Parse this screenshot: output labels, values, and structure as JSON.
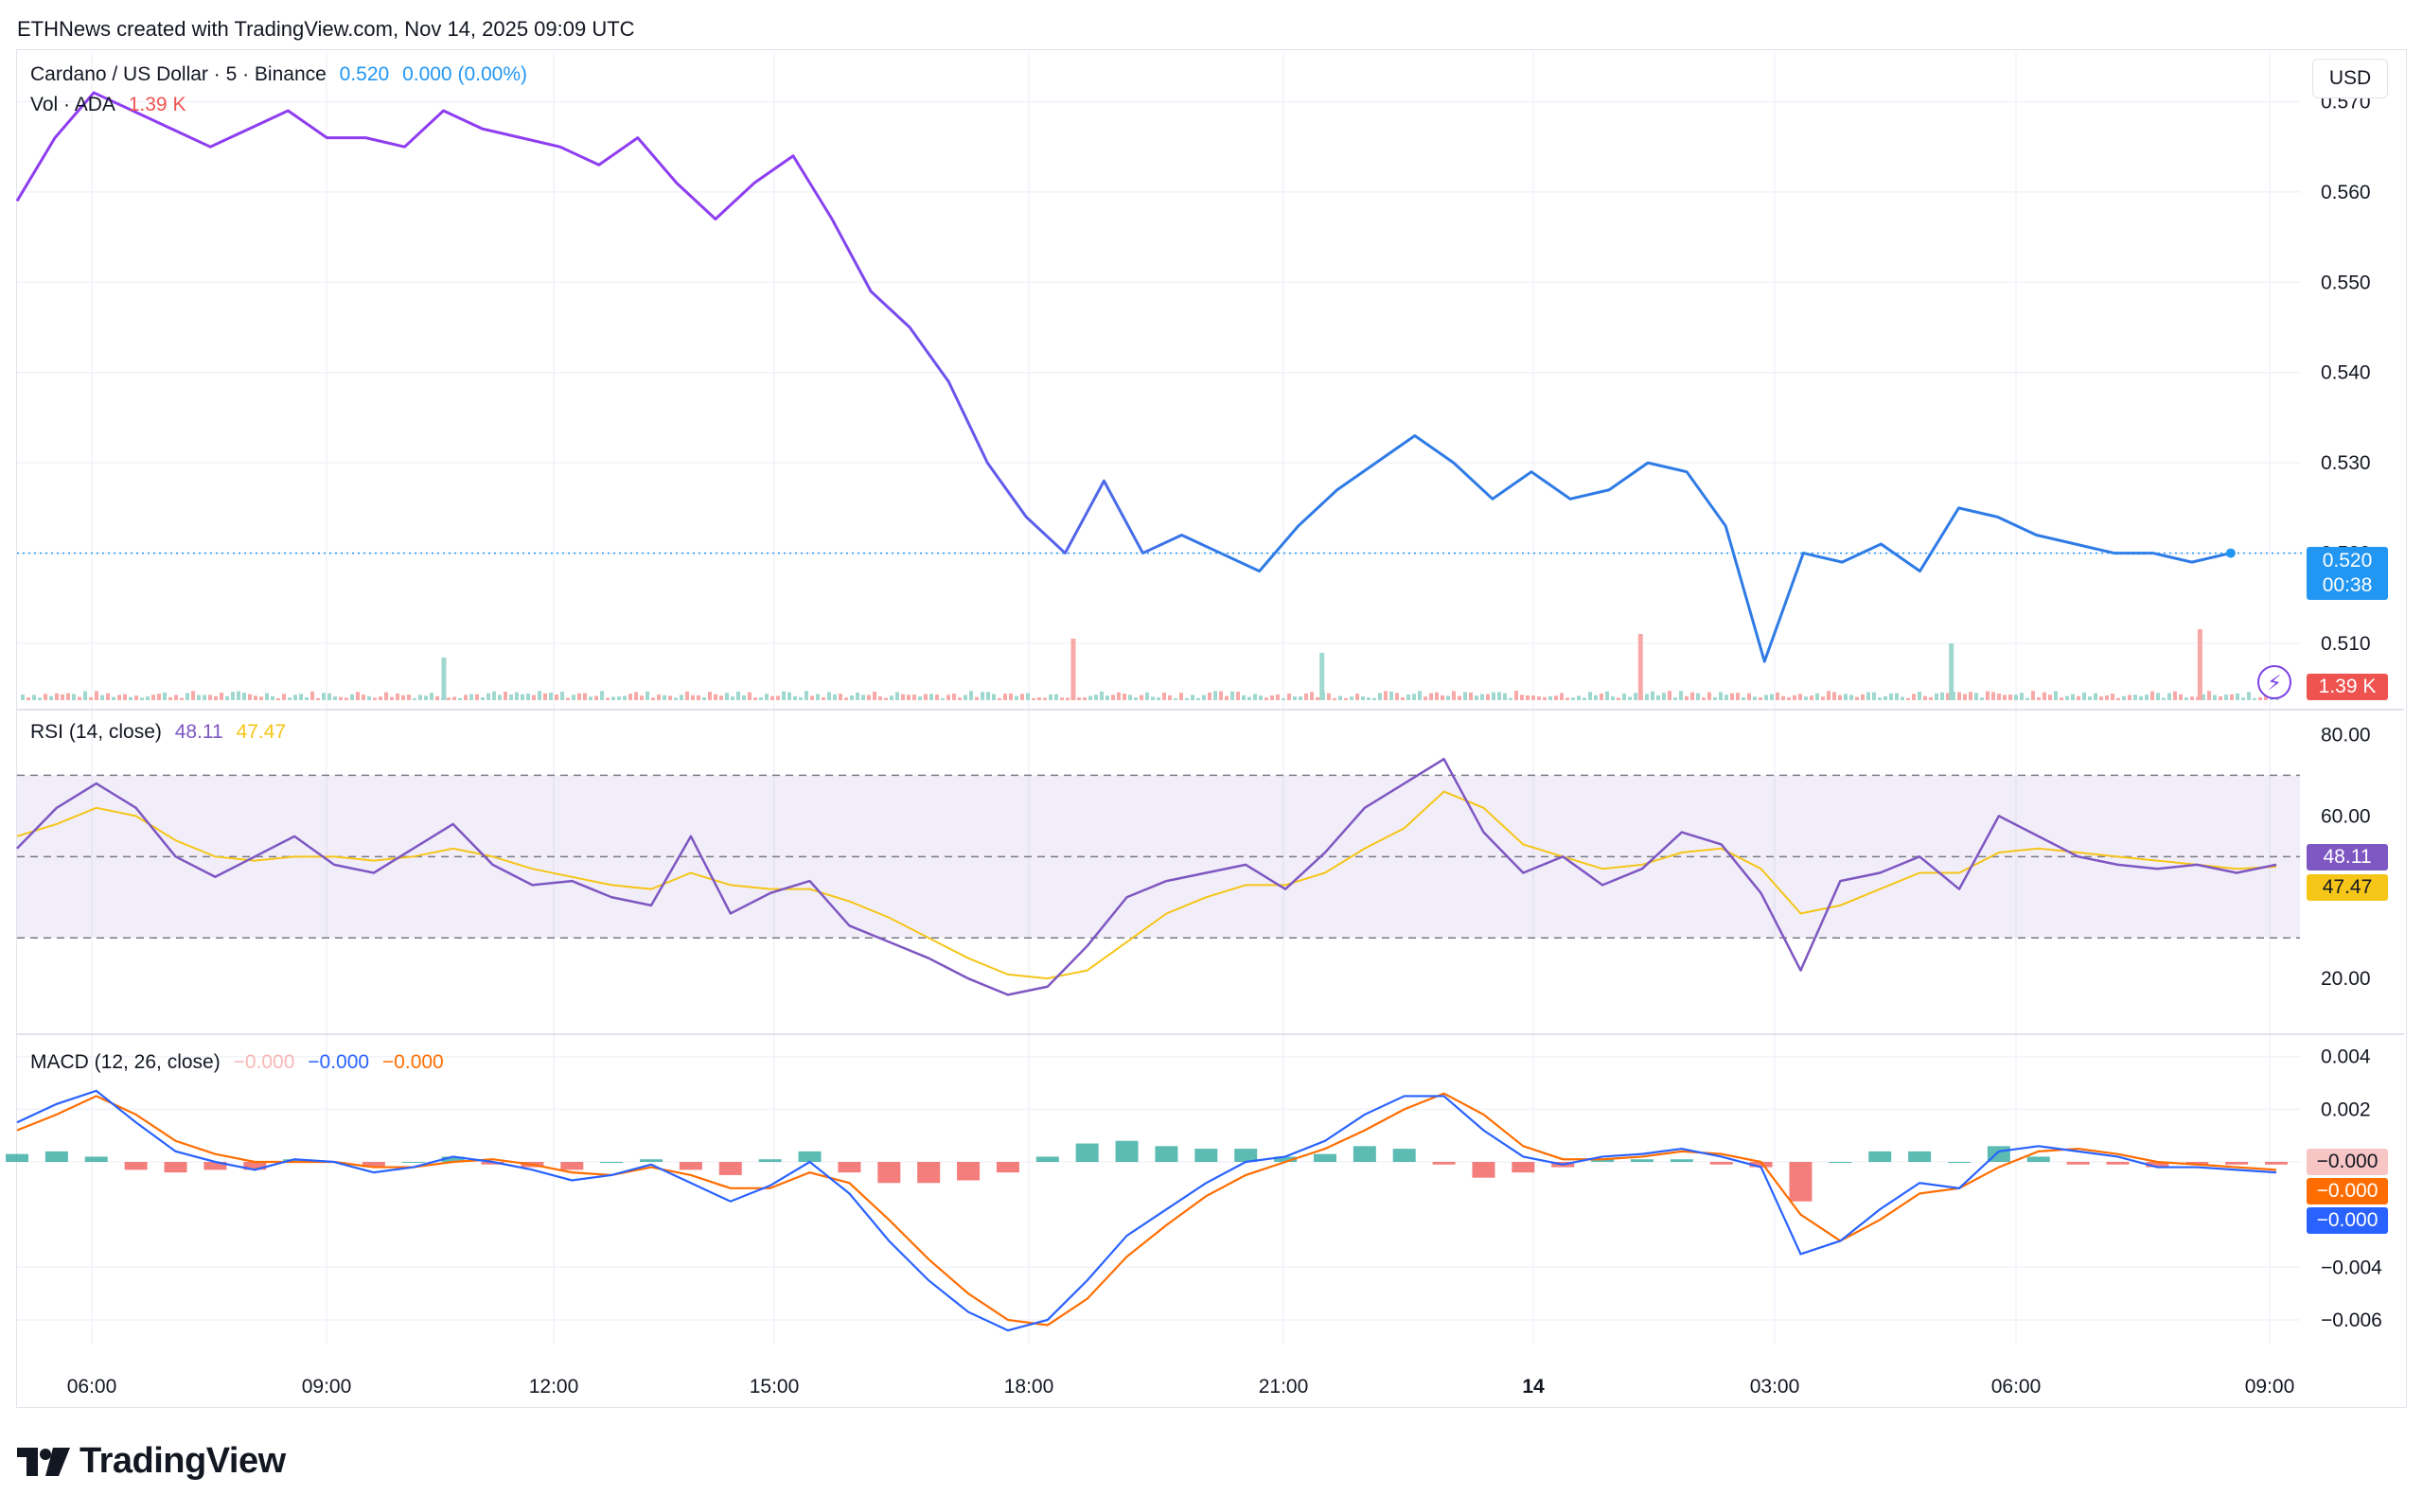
{
  "header": {
    "credit": "ETHNews created with TradingView.com, Nov 14, 2025 09:09 UTC"
  },
  "legend": {
    "symbol": "Cardano / US Dollar · 5 · Binance",
    "price": "0.520",
    "change": "0.000 (0.00%)",
    "vol_label": "Vol · ADA",
    "vol_value": "1.39 K",
    "rsi_label": "RSI (14, close)",
    "rsi_value": "48.11",
    "rsi_ma_value": "47.47",
    "macd_label": "MACD (12, 26, close)",
    "macd_hist": "−0.000",
    "macd_line": "−0.000",
    "macd_signal": "−0.000"
  },
  "toolbar": {
    "currency_button": "USD"
  },
  "badges": {
    "price": "0.520",
    "countdown": "00:38",
    "volume": "1.39 K",
    "rsi": "48.11",
    "rsi_ma": "47.47",
    "macd_hist": "−0.000",
    "macd_signal": "−0.000",
    "macd_line": "−0.000"
  },
  "colors": {
    "price_start": "#8e3df0",
    "price_end": "#2f7be6",
    "up": "#26a69a",
    "down": "#ef5350",
    "rsi": "#7e57c2",
    "rsi_ma": "#f5c518",
    "macd": "#2962ff",
    "signal": "#ff6d00",
    "price_badge": "#2196f3",
    "vol_badge": "#ef5350"
  },
  "branding": {
    "logo_text": "TradingView"
  },
  "chart_data": [
    {
      "type": "line",
      "title": "Cardano / US Dollar · 5 · Binance",
      "x_ticks": [
        "06:00",
        "09:00",
        "12:00",
        "15:00",
        "18:00",
        "21:00",
        "14",
        "03:00",
        "06:00",
        "09:00"
      ],
      "y_ticks": [
        "0.570",
        "0.560",
        "0.550",
        "0.540",
        "0.530",
        "0.520",
        "0.510"
      ],
      "ylim": [
        0.5035,
        0.5755
      ],
      "x_hours": [
        0,
        0.5,
        1,
        1.5,
        2,
        2.5,
        3,
        3.5,
        4,
        4.5,
        5,
        5.5,
        6,
        6.5,
        7,
        7.5,
        8,
        8.5,
        9,
        9.5,
        10,
        10.5,
        11,
        11.5,
        12,
        12.5,
        13,
        13.5,
        14,
        14.5,
        15,
        15.5,
        16,
        16.5,
        17,
        17.5,
        18,
        18.5,
        19,
        19.5,
        20,
        20.5,
        21,
        21.5,
        22,
        22.5,
        23,
        23.5,
        24,
        24.5,
        25,
        25.5,
        26,
        26.5,
        27,
        27.5,
        28,
        28.5
      ],
      "close": [
        0.559,
        0.566,
        0.571,
        0.569,
        0.567,
        0.565,
        0.567,
        0.569,
        0.566,
        0.566,
        0.565,
        0.569,
        0.567,
        0.566,
        0.565,
        0.563,
        0.566,
        0.561,
        0.557,
        0.561,
        0.564,
        0.557,
        0.549,
        0.545,
        0.539,
        0.53,
        0.524,
        0.52,
        0.528,
        0.52,
        0.522,
        0.52,
        0.518,
        0.523,
        0.527,
        0.53,
        0.533,
        0.53,
        0.526,
        0.529,
        0.526,
        0.527,
        0.53,
        0.529,
        0.523,
        0.508,
        0.52,
        0.519,
        0.521,
        0.518,
        0.525,
        0.524,
        0.522,
        0.521,
        0.52,
        0.52,
        0.519,
        0.52
      ],
      "last_price": 0.52,
      "volume": {
        "legend": "Vol · ADA",
        "last": "1.39 K",
        "spikes": [
          {
            "x_hour": 4.5,
            "v": 18
          },
          {
            "x_hour": 12.6,
            "v": 26
          },
          {
            "x_hour": 15.8,
            "v": 20
          },
          {
            "x_hour": 19.9,
            "v": 28
          },
          {
            "x_hour": 23.9,
            "v": 24
          },
          {
            "x_hour": 27.1,
            "v": 30
          }
        ]
      }
    },
    {
      "type": "line",
      "title": "RSI (14, close)",
      "y_ticks": [
        "80.00",
        "60.00",
        "20.00"
      ],
      "ylim": [
        7,
        85
      ],
      "bands": [
        30,
        50,
        70
      ],
      "rsi": [
        52,
        62,
        68,
        62,
        50,
        45,
        50,
        55,
        48,
        46,
        52,
        58,
        48,
        43,
        44,
        40,
        38,
        55,
        36,
        41,
        44,
        33,
        29,
        25,
        20,
        16,
        18,
        28,
        40,
        44,
        46,
        48,
        42,
        51,
        62,
        68,
        74,
        56,
        46,
        50,
        43,
        47,
        56,
        53,
        41,
        22,
        44,
        46,
        50,
        42,
        60,
        55,
        50,
        48,
        47,
        48,
        46,
        48
      ],
      "rsi_ma": [
        55,
        58,
        62,
        60,
        54,
        50,
        49,
        50,
        50,
        49,
        50,
        52,
        50,
        47,
        45,
        43,
        42,
        46,
        43,
        42,
        42,
        39,
        35,
        30,
        25,
        21,
        20,
        22,
        29,
        36,
        40,
        43,
        43,
        46,
        52,
        57,
        66,
        62,
        53,
        50,
        47,
        48,
        51,
        52,
        47,
        36,
        38,
        42,
        46,
        46,
        51,
        52,
        51,
        50,
        49,
        48,
        47,
        47.5
      ],
      "values": [
        "48.11",
        "47.47"
      ]
    },
    {
      "type": "line",
      "title": "MACD (12, 26, close)",
      "y_ticks": [
        "0.004",
        "0.002",
        "−0.000",
        "−0.004",
        "−0.006"
      ],
      "ylim": [
        -0.0069,
        0.0046
      ],
      "macd": [
        0.0015,
        0.0022,
        0.0027,
        0.0015,
        0.0004,
        0.0,
        -0.0003,
        0.0001,
        0.0,
        -0.0004,
        -0.0002,
        0.0002,
        0.0,
        -0.0003,
        -0.0007,
        -0.0005,
        -0.0001,
        -0.0008,
        -0.0015,
        -0.0009,
        0.0,
        -0.0012,
        -0.003,
        -0.0045,
        -0.0057,
        -0.0064,
        -0.006,
        -0.0045,
        -0.0028,
        -0.0018,
        -0.0008,
        0.0,
        0.0002,
        0.0008,
        0.0018,
        0.0025,
        0.0025,
        0.0012,
        0.0002,
        -0.0001,
        0.0002,
        0.0003,
        0.0005,
        0.0002,
        -0.0002,
        -0.0035,
        -0.003,
        -0.0018,
        -0.0008,
        -0.001,
        0.0004,
        0.0006,
        0.0004,
        0.0002,
        -0.0002,
        -0.0002,
        -0.0003,
        -0.0004
      ],
      "signal": [
        0.0012,
        0.0018,
        0.0025,
        0.0018,
        0.0008,
        0.0003,
        0.0,
        0.0,
        0.0,
        -0.0002,
        -0.0002,
        0.0,
        0.0001,
        -0.0001,
        -0.0004,
        -0.0005,
        -0.0002,
        -0.0005,
        -0.001,
        -0.001,
        -0.0004,
        -0.0008,
        -0.0022,
        -0.0037,
        -0.005,
        -0.006,
        -0.0062,
        -0.0052,
        -0.0036,
        -0.0024,
        -0.0013,
        -0.0005,
        0.0,
        0.0005,
        0.0012,
        0.002,
        0.0026,
        0.0018,
        0.0006,
        0.0001,
        0.0001,
        0.0002,
        0.0004,
        0.0003,
        0.0,
        -0.002,
        -0.003,
        -0.0022,
        -0.0012,
        -0.001,
        -0.0002,
        0.0004,
        0.0005,
        0.0003,
        0.0,
        -0.0001,
        -0.0002,
        -0.0003
      ],
      "values": [
        "−0.000",
        "−0.000",
        "−0.000"
      ]
    }
  ]
}
